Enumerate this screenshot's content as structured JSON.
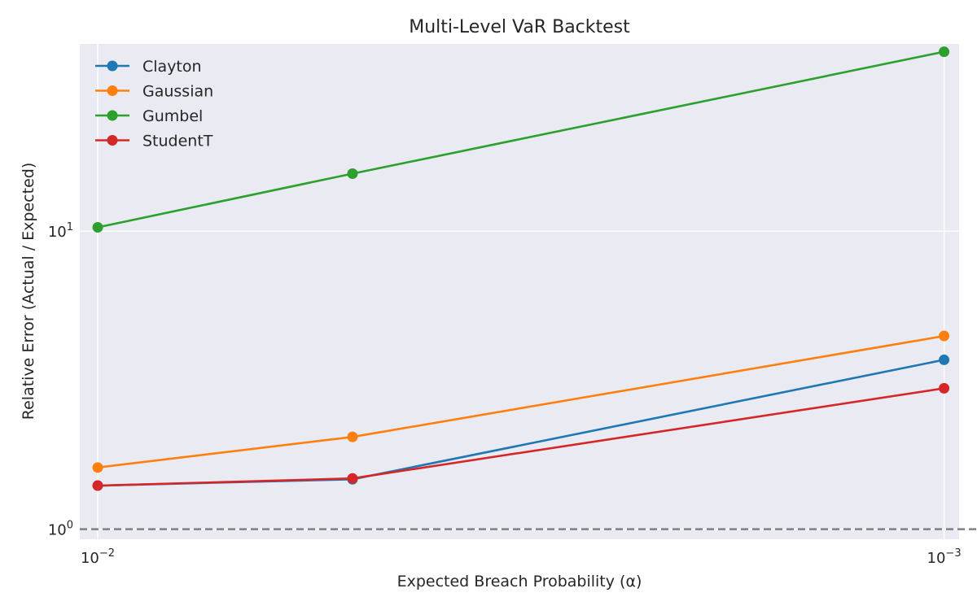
{
  "chart_data": {
    "type": "line",
    "title": "Multi-Level VaR Backtest",
    "xlabel": "Expected Breach Probability (α)",
    "ylabel": "Relative Error (Actual / Expected)",
    "x": [
      0.01,
      0.005,
      0.001
    ],
    "x_scale": "reciprocal-log",
    "y_scale": "log",
    "xlim": [
      0.0105,
      0.00096
    ],
    "ylim": [
      0.925,
      42.5
    ],
    "x_ticks": [
      {
        "base": "10",
        "exp": "−2"
      },
      {
        "base": "10",
        "exp": "−3"
      }
    ],
    "y_ticks": [
      {
        "value": 1,
        "base": "10",
        "exp": "0"
      },
      {
        "value": 10,
        "base": "10",
        "exp": "1"
      }
    ],
    "reference_line": {
      "y": 1.0,
      "style": "dashed",
      "color": "#808080"
    },
    "grid": true,
    "background": "#eaeaf2",
    "legend": {
      "position": "top-left"
    },
    "series": [
      {
        "name": "Clayton",
        "color": "#1f77b4",
        "values": [
          1.4,
          1.47,
          3.7
        ]
      },
      {
        "name": "Gaussian",
        "color": "#ff7f0e",
        "values": [
          1.61,
          2.04,
          4.45
        ]
      },
      {
        "name": "Gumbel",
        "color": "#2ca02c",
        "values": [
          10.3,
          15.6,
          40.0
        ]
      },
      {
        "name": "StudentT",
        "color": "#d62728",
        "values": [
          1.4,
          1.48,
          2.97
        ]
      }
    ]
  }
}
